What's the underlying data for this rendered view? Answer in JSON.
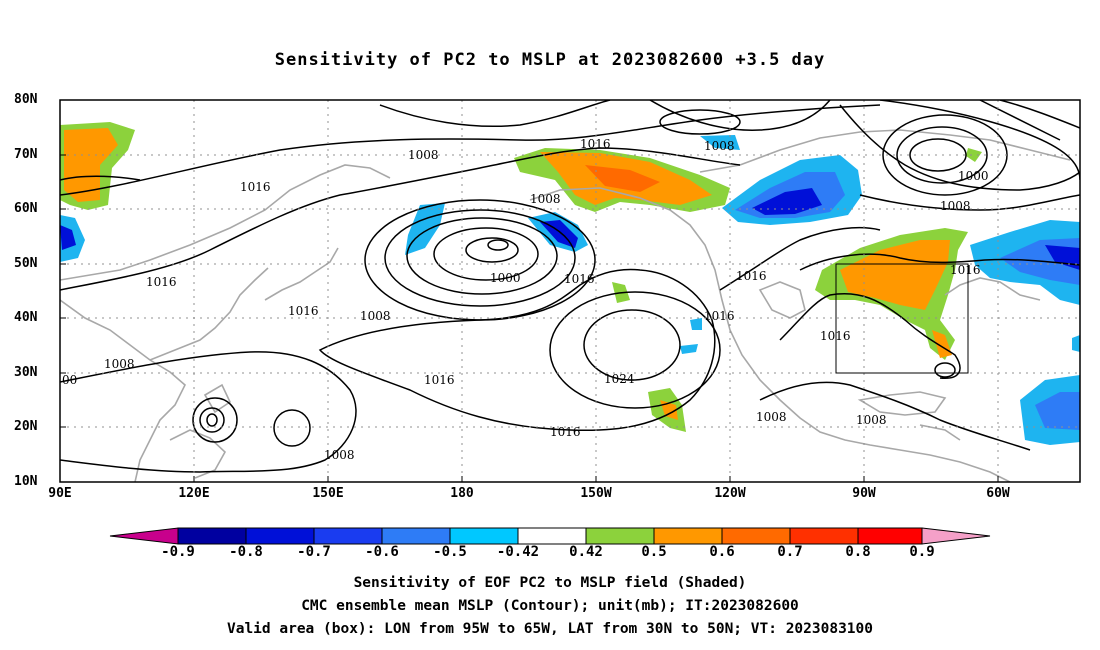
{
  "title": "Sensitivity of PC2 to MSLP at 2023082600 +3.5 day",
  "map": {
    "lat_labels": [
      "80N",
      "70N",
      "60N",
      "50N",
      "40N",
      "30N",
      "20N",
      "10N"
    ],
    "lon_labels": [
      "90E",
      "120E",
      "150E",
      "180",
      "150W",
      "120W",
      "90W",
      "60W"
    ],
    "contour_labels": [
      "1008",
      "1016",
      "1016",
      "1008",
      "1000",
      "1016",
      "1016",
      "1016",
      "1016",
      "1008",
      "1008",
      "1016",
      "1024",
      "1016",
      "1008",
      "1008",
      "1016",
      "1016",
      "1008",
      "1000",
      "1008",
      "1016",
      "00",
      "1008"
    ],
    "box": {
      "lon_from": "95W",
      "lon_to": "65W",
      "lat_from": "30N",
      "lat_to": "50N"
    }
  },
  "colorbar": {
    "labels": [
      "-0.9",
      "-0.8",
      "-0.7",
      "-0.6",
      "-0.5",
      "-0.42",
      "0.42",
      "0.5",
      "0.6",
      "0.7",
      "0.8",
      "0.9"
    ],
    "colors": [
      "#c8008c",
      "#0000a0",
      "#0010d8",
      "#1a3cf0",
      "#2e7cf6",
      "#1eb4f0",
      "#00d8ff",
      "#ffffff",
      "#8cd23c",
      "#ff9800",
      "#ff6a00",
      "#ff3000",
      "#ff0000",
      "#f5a0c8"
    ]
  },
  "captions": {
    "line1": "Sensitivity of EOF PC2 to MSLP field (Shaded)",
    "line2": "CMC ensemble mean MSLP (Contour); unit(mb); IT:2023082600",
    "line3": "Valid area (box): LON from 95W to 65W, LAT from 30N to 50N; VT: 2023083100"
  }
}
